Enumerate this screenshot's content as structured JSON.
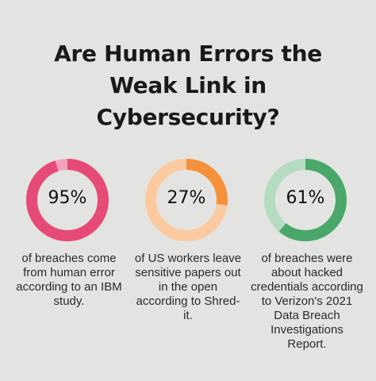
{
  "title_lines": [
    "Are Human Errors the",
    "Weak Link in",
    "Cybersecurity?"
  ],
  "chart_data": {
    "type": "pie",
    "charts": [
      {
        "label": "95%",
        "value": 95,
        "colors": {
          "fill": "#e64b77",
          "track": "#f3a4bd"
        },
        "description_lines": [
          "of breaches come",
          "from human error",
          "according to an IBM",
          "study."
        ]
      },
      {
        "label": "27%",
        "value": 27,
        "colors": {
          "fill": "#f5913a",
          "track": "#fbcaa0"
        },
        "description_lines": [
          "of US workers leave",
          "sensitive papers out",
          "in the open",
          "according to Shred-",
          "it."
        ]
      },
      {
        "label": "61%",
        "value": 61,
        "colors": {
          "fill": "#4aa76a",
          "track": "#b5dcc1"
        },
        "description_lines": [
          "of breaches were",
          "about hacked",
          "credentials according",
          "to Verizon's 2021",
          "Data Breach",
          "Investigations",
          "Report."
        ]
      }
    ]
  }
}
